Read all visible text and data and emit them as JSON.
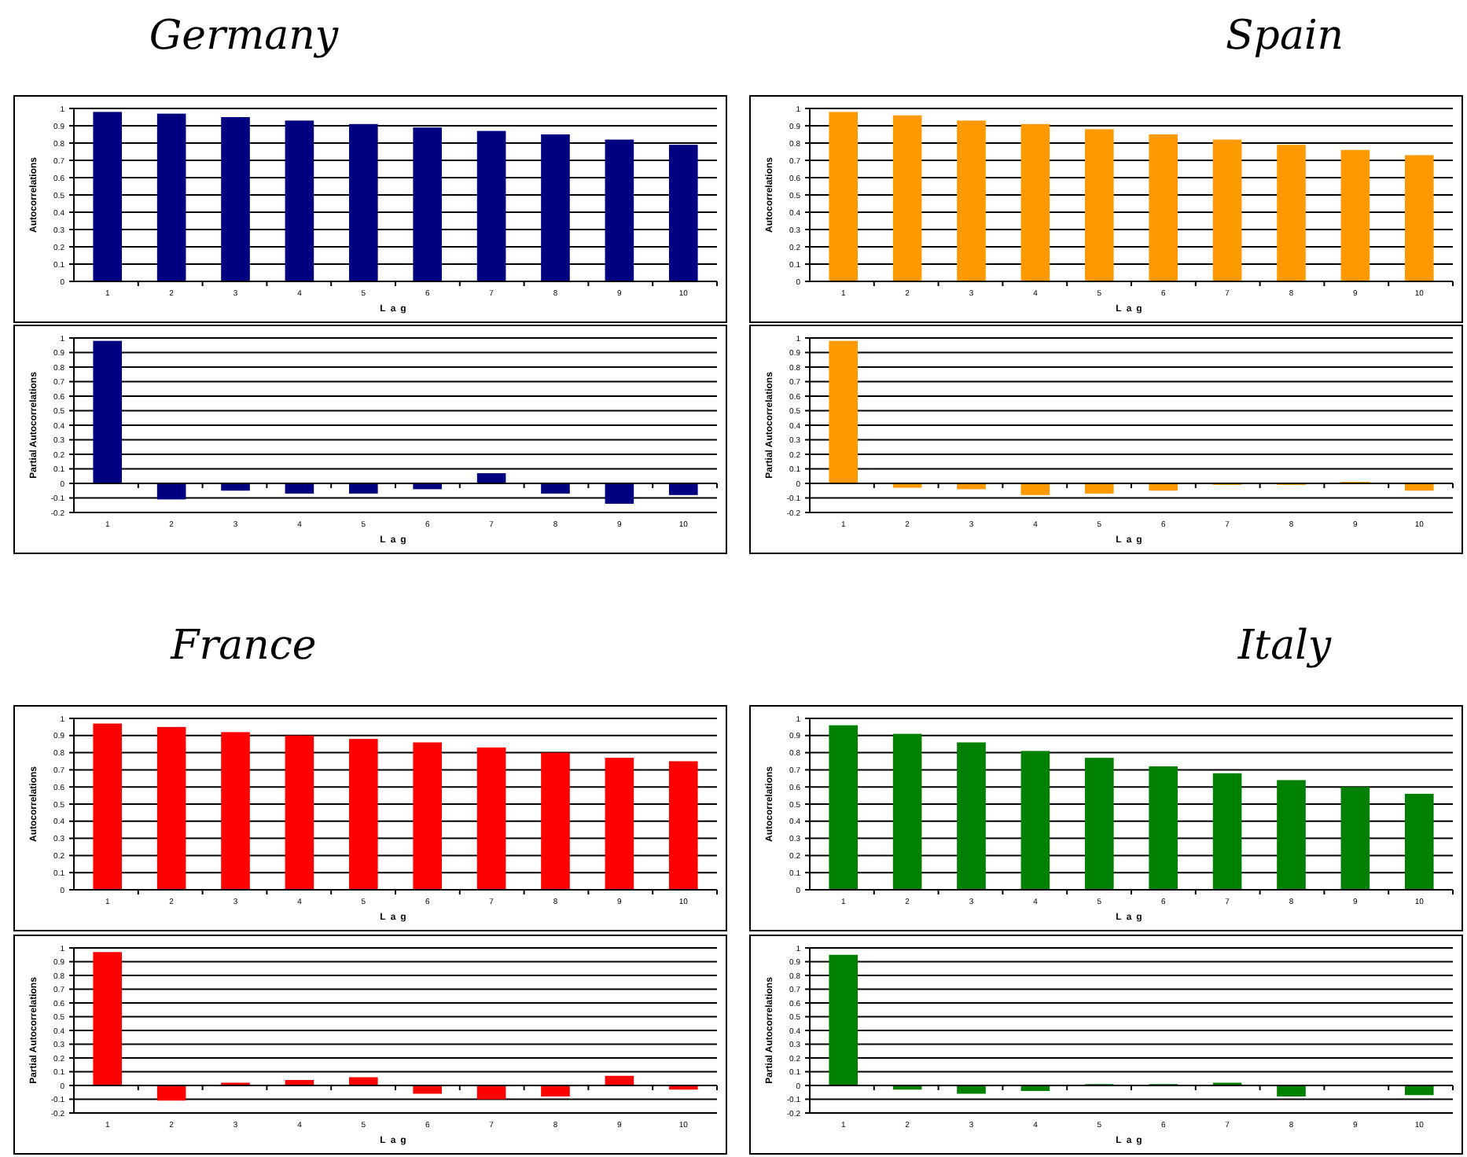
{
  "chart_data": [
    {
      "type": "bar",
      "title": "Germany",
      "categories": [
        "1",
        "2",
        "3",
        "4",
        "5",
        "6",
        "7",
        "8",
        "9",
        "10"
      ],
      "values": [
        0.98,
        0.97,
        0.95,
        0.93,
        0.91,
        0.89,
        0.87,
        0.85,
        0.82,
        0.79
      ],
      "color": "#000080",
      "ylim": [
        0,
        1
      ],
      "yticks": [
        0,
        0.1,
        0.2,
        0.3,
        0.4,
        0.5,
        0.6,
        0.7,
        0.8,
        0.9,
        1
      ],
      "grid": "y",
      "xlabel": "Lag",
      "ylabel": "Autocorrelations"
    },
    {
      "type": "bar",
      "title": "Spain",
      "categories": [
        "1",
        "2",
        "3",
        "4",
        "5",
        "6",
        "7",
        "8",
        "9",
        "10"
      ],
      "values": [
        0.98,
        0.96,
        0.93,
        0.91,
        0.88,
        0.85,
        0.82,
        0.79,
        0.76,
        0.73
      ],
      "color": "#ff9900",
      "ylim": [
        0,
        1
      ],
      "yticks": [
        0,
        0.1,
        0.2,
        0.3,
        0.4,
        0.5,
        0.6,
        0.7,
        0.8,
        0.9,
        1
      ],
      "grid": "y",
      "xlabel": "Lag",
      "ylabel": "Autocorrelations"
    },
    {
      "type": "bar",
      "categories": [
        "1",
        "2",
        "3",
        "4",
        "5",
        "6",
        "7",
        "8",
        "9",
        "10"
      ],
      "values": [
        0.98,
        -0.11,
        -0.05,
        -0.07,
        -0.07,
        -0.04,
        0.07,
        -0.07,
        -0.14,
        -0.08
      ],
      "color": "#000080",
      "ylim": [
        -0.2,
        1
      ],
      "yticks": [
        -0.2,
        -0.1,
        0,
        0.1,
        0.2,
        0.3,
        0.4,
        0.5,
        0.6,
        0.7,
        0.8,
        0.9,
        1
      ],
      "grid": "y",
      "xlabel": "Lag",
      "ylabel": "Partial Autocorrelations"
    },
    {
      "type": "bar",
      "categories": [
        "1",
        "2",
        "3",
        "4",
        "5",
        "6",
        "7",
        "8",
        "9",
        "10"
      ],
      "values": [
        0.98,
        -0.03,
        -0.04,
        -0.08,
        -0.07,
        -0.05,
        -0.01,
        -0.01,
        0.01,
        -0.05
      ],
      "color": "#ff9900",
      "ylim": [
        -0.2,
        1
      ],
      "yticks": [
        -0.2,
        -0.1,
        0,
        0.1,
        0.2,
        0.3,
        0.4,
        0.5,
        0.6,
        0.7,
        0.8,
        0.9,
        1
      ],
      "grid": "y",
      "xlabel": "Lag",
      "ylabel": "Partial Autocorrelations"
    },
    {
      "type": "bar",
      "title": "France",
      "categories": [
        "1",
        "2",
        "3",
        "4",
        "5",
        "6",
        "7",
        "8",
        "9",
        "10"
      ],
      "values": [
        0.97,
        0.95,
        0.92,
        0.9,
        0.88,
        0.86,
        0.83,
        0.8,
        0.77,
        0.75
      ],
      "color": "#ff0000",
      "ylim": [
        0,
        1
      ],
      "yticks": [
        0,
        0.1,
        0.2,
        0.3,
        0.4,
        0.5,
        0.6,
        0.7,
        0.8,
        0.9,
        1
      ],
      "grid": "y",
      "xlabel": "Lag",
      "ylabel": "Autocorrelations"
    },
    {
      "type": "bar",
      "title": "Italy",
      "categories": [
        "1",
        "2",
        "3",
        "4",
        "5",
        "6",
        "7",
        "8",
        "9",
        "10"
      ],
      "values": [
        0.96,
        0.91,
        0.86,
        0.81,
        0.77,
        0.72,
        0.68,
        0.64,
        0.6,
        0.56
      ],
      "color": "#008000",
      "ylim": [
        0,
        1
      ],
      "yticks": [
        0,
        0.1,
        0.2,
        0.3,
        0.4,
        0.5,
        0.6,
        0.7,
        0.8,
        0.9,
        1
      ],
      "grid": "y",
      "xlabel": "Lag",
      "ylabel": "Autocorrelations"
    },
    {
      "type": "bar",
      "categories": [
        "1",
        "2",
        "3",
        "4",
        "5",
        "6",
        "7",
        "8",
        "9",
        "10"
      ],
      "values": [
        0.97,
        -0.11,
        0.02,
        0.04,
        0.06,
        -0.06,
        -0.1,
        -0.08,
        0.07,
        -0.03
      ],
      "color": "#ff0000",
      "ylim": [
        -0.2,
        1
      ],
      "yticks": [
        -0.2,
        -0.1,
        0,
        0.1,
        0.2,
        0.3,
        0.4,
        0.5,
        0.6,
        0.7,
        0.8,
        0.9,
        1
      ],
      "grid": "y",
      "xlabel": "Lag",
      "ylabel": "Partial Autocorrelations"
    },
    {
      "type": "bar",
      "categories": [
        "1",
        "2",
        "3",
        "4",
        "5",
        "6",
        "7",
        "8",
        "9",
        "10"
      ],
      "values": [
        0.95,
        -0.03,
        -0.06,
        -0.04,
        0.01,
        0.01,
        0.02,
        -0.08,
        0,
        -0.07
      ],
      "color": "#008000",
      "ylim": [
        -0.2,
        1
      ],
      "yticks": [
        -0.2,
        -0.1,
        0,
        0.1,
        0.2,
        0.3,
        0.4,
        0.5,
        0.6,
        0.7,
        0.8,
        0.9,
        1
      ],
      "grid": "y",
      "xlabel": "Lag",
      "ylabel": "Partial Autocorrelations"
    }
  ]
}
